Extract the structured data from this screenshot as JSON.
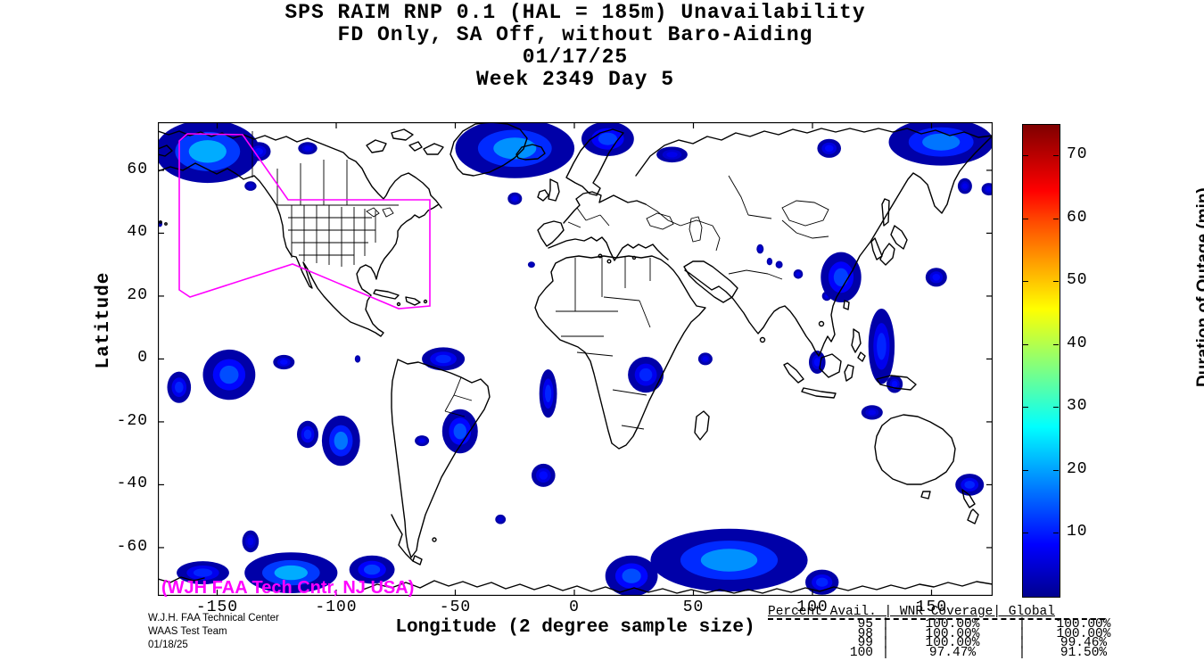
{
  "title": {
    "line1": "SPS RAIM RNP 0.1 (HAL = 185m) Unavailability",
    "line2": "FD Only, SA Off, without Baro-Aiding",
    "line3": "01/17/25",
    "line4": "Week 2349 Day 5"
  },
  "axes": {
    "xlabel": "Longitude (2 degree sample size)",
    "ylabel": "Latitude"
  },
  "annotations": {
    "map_label": "(WJH FAA Tech Cntr, NJ USA)",
    "credit": [
      "W.J.H. FAA Technical Center",
      "WAAS Test Team",
      "01/18/25"
    ]
  },
  "stats_table": {
    "header": "Percent Avail. | WNR Coverage| Global",
    "columns": [
      "Percent Avail.",
      "WNR Coverage",
      "Global"
    ],
    "rows": [
      [
        "95",
        "100.00%",
        "100.00%"
      ],
      [
        "98",
        "100.00%",
        "100.00%"
      ],
      [
        "99",
        "100.00%",
        "99.46%"
      ],
      [
        "100",
        "97.47%",
        "91.50%"
      ]
    ]
  },
  "colors": {
    "waas_boundary": "#FF00FF",
    "annotation_magenta": "#FF00FF",
    "coastline": "#000000",
    "outage_deep_blue": "#0000A8",
    "background": "#FFFFFF"
  },
  "chart_data": {
    "type": "heatmap",
    "subtype": "geographic-outage-contour-map",
    "title": "SPS RAIM RNP 0.1 (HAL = 185m) Unavailability",
    "subtitle": "FD Only, SA Off, without Baro-Aiding, 01/17/25, Week 2349 Day 5",
    "xlabel": "Longitude (2 degree sample size)",
    "ylabel": "Latitude",
    "xticks": [
      -150,
      -100,
      -50,
      0,
      50,
      100,
      150
    ],
    "yticks": [
      60,
      40,
      20,
      0,
      -20,
      -40,
      -60
    ],
    "xlim": [
      -176,
      176
    ],
    "ylim": [
      -75.3,
      75.3
    ],
    "grid": false,
    "legend_position": "none",
    "colorbar": {
      "label": "Duration of Outage (min)",
      "ticks": [
        10,
        20,
        30,
        40,
        50,
        60,
        70
      ],
      "min": 0,
      "max": 75,
      "colormap": "jet",
      "position": "right"
    },
    "outage_regions_lon_lat_rx_ry_min": [
      [
        -154,
        66,
        22,
        10,
        22
      ],
      [
        -132.5,
        66,
        5,
        3,
        10
      ],
      [
        -112,
        67,
        4,
        2,
        8
      ],
      [
        -136,
        55,
        2.5,
        1.5,
        6
      ],
      [
        -25,
        67,
        25,
        9.5,
        20
      ],
      [
        14,
        70,
        11,
        5.5,
        14
      ],
      [
        -25,
        51,
        3,
        2,
        8
      ],
      [
        41,
        65,
        6.5,
        2.5,
        8
      ],
      [
        107,
        67,
        5,
        3,
        10
      ],
      [
        154,
        69,
        22,
        7.5,
        18
      ],
      [
        164,
        55,
        3,
        2.5,
        8
      ],
      [
        174,
        54,
        3,
        2,
        8
      ],
      [
        78,
        35,
        1.5,
        1.5,
        7
      ],
      [
        82,
        31,
        1.2,
        1.2,
        7
      ],
      [
        86,
        30,
        1.5,
        1.2,
        6
      ],
      [
        94,
        27,
        2,
        1.5,
        8
      ],
      [
        106,
        20,
        2,
        1.5,
        8
      ],
      [
        112,
        26,
        8.5,
        8,
        14
      ],
      [
        152,
        26,
        4.5,
        3,
        10
      ],
      [
        129,
        4,
        5.5,
        12,
        12
      ],
      [
        102,
        -1,
        3.5,
        3.7,
        10
      ],
      [
        134.5,
        -8,
        3.4,
        2.8,
        10
      ],
      [
        55,
        0,
        3,
        2,
        8
      ],
      [
        -166,
        -9,
        5,
        5,
        12
      ],
      [
        -145,
        -5,
        11,
        8,
        15
      ],
      [
        -122,
        -1,
        4.5,
        2.3,
        10
      ],
      [
        -112,
        -24,
        4.5,
        4.3,
        12
      ],
      [
        -98,
        -26,
        8,
        8,
        18
      ],
      [
        -55,
        0,
        9,
        3.7,
        12
      ],
      [
        -48,
        -23,
        7.5,
        7,
        15
      ],
      [
        -64,
        -26,
        3,
        1.7,
        8
      ],
      [
        -91,
        0,
        1.2,
        1.2,
        6
      ],
      [
        -18,
        30,
        1.5,
        1,
        5
      ],
      [
        30,
        -5,
        7.5,
        5.7,
        12
      ],
      [
        -11,
        -11,
        3.7,
        7.7,
        12
      ],
      [
        -13,
        -37,
        5,
        3.7,
        10
      ],
      [
        -31,
        -51,
        2.2,
        1.5,
        6
      ],
      [
        125,
        -17,
        4.5,
        2.3,
        8
      ],
      [
        166,
        -40,
        6,
        3.5,
        12
      ],
      [
        -156,
        -68,
        11,
        3.7,
        12
      ],
      [
        -136,
        -58,
        3.5,
        3.5,
        8
      ],
      [
        -119,
        -68,
        19.5,
        6.5,
        22
      ],
      [
        -85,
        -67,
        9.5,
        4.5,
        14
      ],
      [
        24,
        -69,
        11,
        6.5,
        15
      ],
      [
        65,
        -64,
        33,
        10,
        20
      ],
      [
        104,
        -71,
        7,
        4,
        12
      ],
      [
        -174,
        43,
        1,
        1,
        5
      ]
    ]
  }
}
